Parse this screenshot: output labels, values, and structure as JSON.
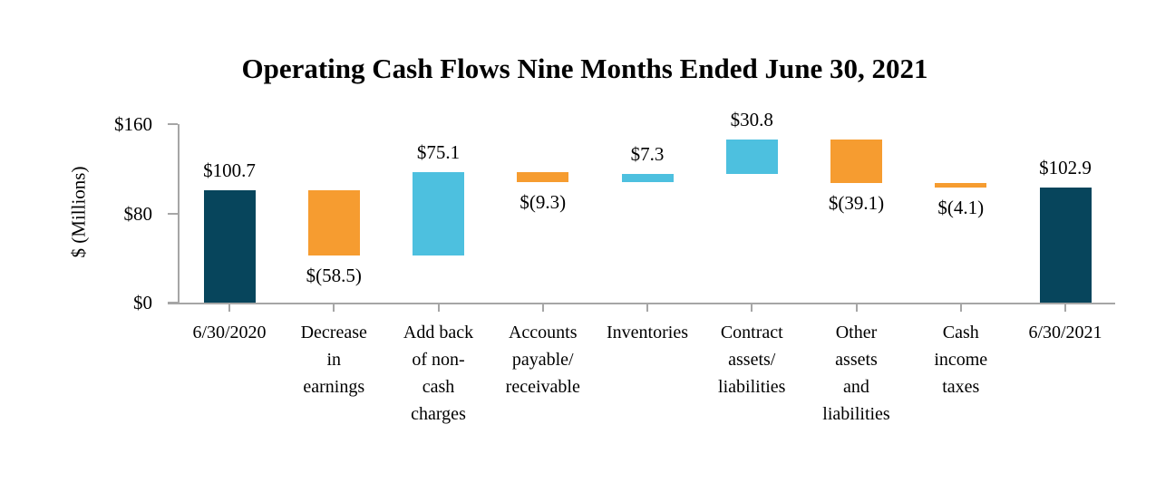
{
  "chart_data": {
    "type": "bar",
    "subtype": "waterfall",
    "title": "Operating Cash Flows Nine Months Ended June 30, 2021",
    "y_axis": {
      "label": "$ (Millions)",
      "range": [
        0,
        160
      ],
      "ticks": [
        {
          "value": 0,
          "label": "$0"
        },
        {
          "value": 80,
          "label": "$80"
        },
        {
          "value": 160,
          "label": "$160"
        }
      ]
    },
    "colors": {
      "total": "#07455C",
      "increase": "#4DC0DF",
      "decrease": "#F69C30",
      "axis": "#A6A6A6"
    },
    "bars": [
      {
        "category_lines": [
          "6/30/2020"
        ],
        "label": "$100.7",
        "value": 100.7,
        "start": 0,
        "end": 100.7,
        "type": "total",
        "label_position": "above"
      },
      {
        "category_lines": [
          "Decrease",
          "in",
          "earnings"
        ],
        "label": "$(58.5)",
        "value": -58.5,
        "start": 100.7,
        "end": 42.2,
        "type": "decrease",
        "label_position": "below"
      },
      {
        "category_lines": [
          "Add back",
          "of non-",
          "cash",
          "charges"
        ],
        "label": "$75.1",
        "value": 75.1,
        "start": 42.2,
        "end": 117.3,
        "type": "increase",
        "label_position": "above"
      },
      {
        "category_lines": [
          "Accounts",
          "payable/",
          "receivable"
        ],
        "label": "$(9.3)",
        "value": -9.3,
        "start": 117.3,
        "end": 108.0,
        "type": "decrease",
        "label_position": "below"
      },
      {
        "category_lines": [
          "Inventories"
        ],
        "label": "$7.3",
        "value": 7.3,
        "start": 108.0,
        "end": 115.3,
        "type": "increase",
        "label_position": "above"
      },
      {
        "category_lines": [
          "Contract",
          "assets/",
          "liabilities"
        ],
        "label": "$30.8",
        "value": 30.8,
        "start": 115.3,
        "end": 146.1,
        "type": "increase",
        "label_position": "above"
      },
      {
        "category_lines": [
          "Other",
          "assets",
          "and",
          "liabilities"
        ],
        "label": "$(39.1)",
        "value": -39.1,
        "start": 146.1,
        "end": 107.0,
        "type": "decrease",
        "label_position": "below"
      },
      {
        "category_lines": [
          "Cash",
          "income",
          "taxes"
        ],
        "label": "$(4.1)",
        "value": -4.1,
        "start": 107.0,
        "end": 102.9,
        "type": "decrease",
        "label_position": "below"
      },
      {
        "category_lines": [
          "6/30/2021"
        ],
        "label": "$102.9",
        "value": 102.9,
        "start": 0,
        "end": 102.9,
        "type": "total",
        "label_position": "above"
      }
    ]
  }
}
